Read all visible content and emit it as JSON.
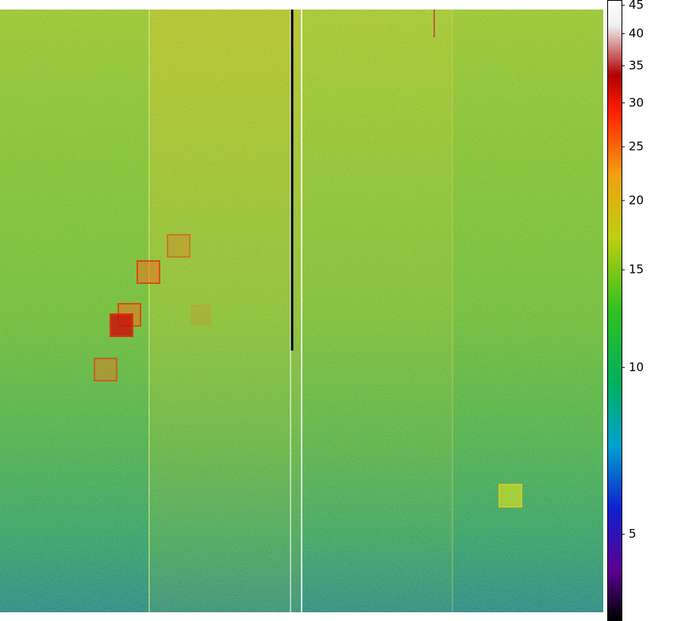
{
  "chart_data": {
    "type": "heatmap",
    "colorbar": {
      "scale": "log",
      "lim": [
        3.5,
        46
      ],
      "ticks": [
        5,
        10,
        15,
        20,
        25,
        30,
        35,
        40,
        45
      ]
    }
  }
}
